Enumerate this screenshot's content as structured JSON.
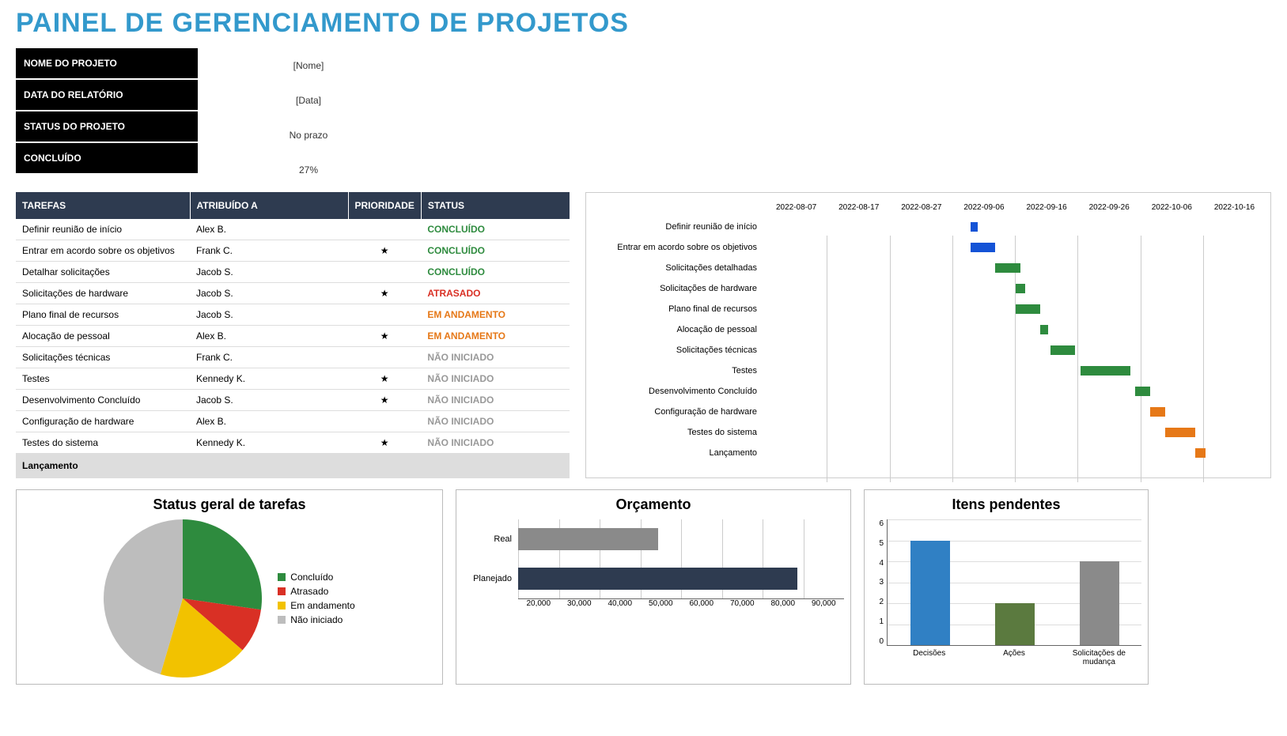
{
  "title": "PAINEL DE GERENCIAMENTO DE PROJETOS",
  "info": {
    "labels": [
      "NOME DO PROJETO",
      "DATA DO RELATÓRIO",
      "STATUS DO PROJETO",
      "CONCLUÍDO"
    ],
    "values": [
      "[Nome]",
      "[Data]",
      "No prazo",
      "27%"
    ]
  },
  "tasks_table": {
    "headers": [
      "TAREFAS",
      "ATRIBUÍDO A",
      "PRIORIDADE",
      "STATUS"
    ],
    "rows": [
      {
        "task": "Definir reunião de início",
        "assignee": "Alex B.",
        "priority": "",
        "status": "CONCLUÍDO",
        "status_class": "concluido"
      },
      {
        "task": "Entrar em acordo sobre os objetivos",
        "assignee": "Frank C.",
        "priority": "★",
        "status": "CONCLUÍDO",
        "status_class": "concluido"
      },
      {
        "task": "Detalhar solicitações",
        "assignee": "Jacob S.",
        "priority": "",
        "status": "CONCLUÍDO",
        "status_class": "concluido"
      },
      {
        "task": "Solicitações de hardware",
        "assignee": "Jacob S.",
        "priority": "★",
        "status": "ATRASADO",
        "status_class": "atrasado"
      },
      {
        "task": "Plano final de recursos",
        "assignee": "Jacob S.",
        "priority": "",
        "status": "EM ANDAMENTO",
        "status_class": "andamento"
      },
      {
        "task": "Alocação de pessoal",
        "assignee": "Alex B.",
        "priority": "★",
        "status": "EM ANDAMENTO",
        "status_class": "andamento"
      },
      {
        "task": "Solicitações técnicas",
        "assignee": "Frank C.",
        "priority": "",
        "status": "NÃO INICIADO",
        "status_class": "nao"
      },
      {
        "task": "Testes",
        "assignee": "Kennedy K.",
        "priority": "★",
        "status": "NÃO INICIADO",
        "status_class": "nao"
      },
      {
        "task": "Desenvolvimento Concluído",
        "assignee": "Jacob S.",
        "priority": "★",
        "status": "NÃO INICIADO",
        "status_class": "nao"
      },
      {
        "task": "Configuração de hardware",
        "assignee": "Alex B.",
        "priority": "",
        "status": "NÃO INICIADO",
        "status_class": "nao"
      },
      {
        "task": "Testes do sistema",
        "assignee": "Kennedy K.",
        "priority": "★",
        "status": "NÃO INICIADO",
        "status_class": "nao"
      }
    ],
    "footer": "Lançamento"
  },
  "gantt": {
    "dates": [
      "2022-08-07",
      "2022-08-17",
      "2022-08-27",
      "2022-09-06",
      "2022-09-16",
      "2022-09-26",
      "2022-10-06",
      "2022-10-16"
    ],
    "range_days": 70,
    "start": "2022-08-07",
    "colors": {
      "blue": "#1453d6",
      "green": "#2e8b3e",
      "orange": "#e67817"
    },
    "rows": [
      {
        "label": "Definir reunião de início",
        "start_pct": 41,
        "width_pct": 1.5,
        "color": "#1453d6"
      },
      {
        "label": "Entrar em acordo sobre os objetivos",
        "start_pct": 41,
        "width_pct": 5,
        "color": "#1453d6"
      },
      {
        "label": "Solicitações detalhadas",
        "start_pct": 46,
        "width_pct": 5,
        "color": "#2e8b3e"
      },
      {
        "label": "Solicitações de hardware",
        "start_pct": 50,
        "width_pct": 2,
        "color": "#2e8b3e"
      },
      {
        "label": "Plano final de recursos",
        "start_pct": 50,
        "width_pct": 5,
        "color": "#2e8b3e"
      },
      {
        "label": "Alocação de pessoal",
        "start_pct": 55,
        "width_pct": 1.5,
        "color": "#2e8b3e"
      },
      {
        "label": "Solicitações técnicas",
        "start_pct": 57,
        "width_pct": 5,
        "color": "#2e8b3e"
      },
      {
        "label": "Testes",
        "start_pct": 63,
        "width_pct": 10,
        "color": "#2e8b3e"
      },
      {
        "label": "Desenvolvimento Concluído",
        "start_pct": 74,
        "width_pct": 3,
        "color": "#2e8b3e"
      },
      {
        "label": "Configuração de hardware",
        "start_pct": 77,
        "width_pct": 3,
        "color": "#e67817"
      },
      {
        "label": "Testes do sistema",
        "start_pct": 80,
        "width_pct": 6,
        "color": "#e67817"
      },
      {
        "label": "Lançamento",
        "start_pct": 86,
        "width_pct": 2,
        "color": "#e67817"
      }
    ]
  },
  "pie_chart": {
    "title": "Status geral de tarefas",
    "slices": [
      {
        "label": "Concluído",
        "value": 3,
        "color": "#2e8b3e"
      },
      {
        "label": "Atrasado",
        "value": 1,
        "color": "#d93025"
      },
      {
        "label": "Em andamento",
        "value": 2,
        "color": "#f2c200"
      },
      {
        "label": "Não iniciado",
        "value": 5,
        "color": "#bdbdbd"
      }
    ],
    "total": 11
  },
  "budget_chart": {
    "title": "Orçamento",
    "xmin": 20000,
    "xmax": 90000,
    "xtick_step": 10000,
    "ticks": [
      "20,000",
      "30,000",
      "40,000",
      "50,000",
      "60,000",
      "70,000",
      "80,000",
      "90,000"
    ],
    "bars": [
      {
        "label": "Real",
        "value": 50000,
        "color": "#8a8a8a"
      },
      {
        "label": "Planejado",
        "value": 80000,
        "color": "#2e3b50"
      }
    ]
  },
  "pending_chart": {
    "title": "Itens pendentes",
    "ymax": 6,
    "ytick_step": 1,
    "ticks": [
      "0",
      "1",
      "2",
      "3",
      "4",
      "5",
      "6"
    ],
    "bars": [
      {
        "label": "Decisões",
        "value": 5,
        "color": "#3080c4"
      },
      {
        "label": "Ações",
        "value": 2,
        "color": "#5b7a3f"
      },
      {
        "label": "Solicitações de mudança",
        "value": 4,
        "color": "#8a8a8a"
      }
    ]
  },
  "layout": {
    "pie_box_width": 540,
    "budget_box_width": 500,
    "pending_box_width": 360
  }
}
